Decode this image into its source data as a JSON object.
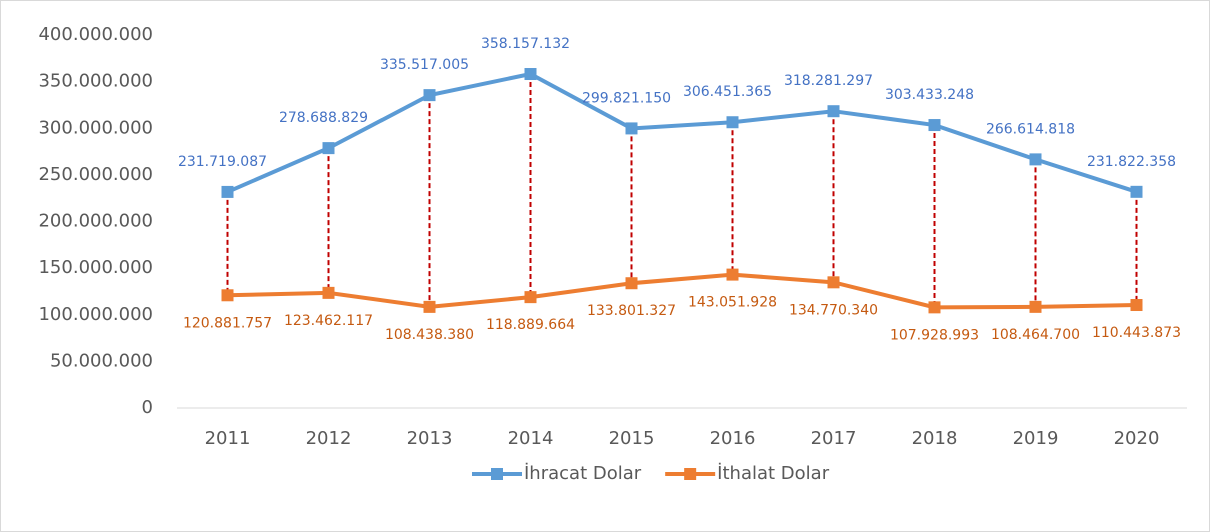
{
  "chart_data": {
    "type": "line",
    "categories": [
      "2011",
      "2012",
      "2013",
      "2014",
      "2015",
      "2016",
      "2017",
      "2018",
      "2019",
      "2020"
    ],
    "series": [
      {
        "name": "İhracat Dolar",
        "color": "#5b9bd5",
        "label_color": "#4472c4",
        "values": [
          231719087,
          278688829,
          335517005,
          358157132,
          299821150,
          306451365,
          318281297,
          303433248,
          266614818,
          231822358
        ],
        "value_labels": [
          "231.719.087",
          "278.688.829",
          "335.517.005",
          "358.157.132",
          "299.821.150",
          "306.451.365",
          "318.281.297",
          "303.433.248",
          "266.614.818",
          "231.822.358"
        ]
      },
      {
        "name": "İthalat Dolar",
        "color": "#ed7d31",
        "label_color": "#c55a11",
        "values": [
          120881757,
          123462117,
          108438380,
          118889664,
          133801327,
          143051928,
          134770340,
          107928993,
          108464700,
          110443873
        ],
        "value_labels": [
          "120.881.757",
          "123.462.117",
          "108.438.380",
          "118.889.664",
          "133.801.327",
          "143.051.928",
          "134.770.340",
          "107.928.993",
          "108.464.700",
          "110.443.873"
        ]
      }
    ],
    "drop_lines": true,
    "drop_line_color": "#c00000",
    "ylim": [
      0,
      400000000
    ],
    "yticks": [
      0,
      {
        "value": 50000000,
        "label": "50.000.000"
      },
      {
        "value": 100000000,
        "label": "100.000.000"
      },
      {
        "value": 150000000,
        "label": "150.000.000"
      },
      {
        "value": 200000000,
        "label": "200.000.000"
      },
      {
        "value": 250000000,
        "label": "250.000.000"
      },
      {
        "value": 300000000,
        "label": "300.000.000"
      },
      {
        "value": 350000000,
        "label": "350.000.000"
      },
      {
        "value": 400000000,
        "label": "400.000.000"
      }
    ],
    "legend": "bottom"
  }
}
